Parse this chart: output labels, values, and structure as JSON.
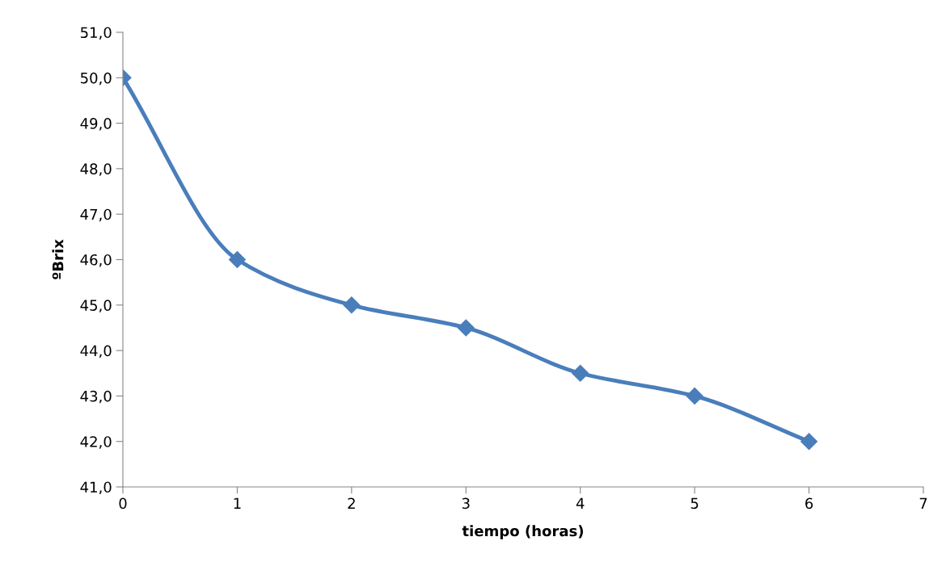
{
  "chart_data": {
    "type": "line",
    "xlabel": "tiempo (horas)",
    "ylabel": "ºBrix",
    "x": [
      0,
      1,
      2,
      3,
      4,
      5,
      6
    ],
    "series": [
      {
        "color": "#4a7ebb",
        "values": [
          50,
          46,
          45,
          44.5,
          43.5,
          43,
          42
        ]
      }
    ],
    "xlim": [
      0,
      7
    ],
    "xticks": [
      0,
      1,
      2,
      3,
      4,
      5,
      6,
      7
    ],
    "ylim": [
      41,
      51
    ],
    "yticks": [
      {
        "value": 41,
        "label": "41,0"
      },
      {
        "value": 42,
        "label": "42,0"
      },
      {
        "value": 43,
        "label": "43,0"
      },
      {
        "value": 44,
        "label": "44,0"
      },
      {
        "value": 45,
        "label": "45,0"
      },
      {
        "value": 46,
        "label": "46,0"
      },
      {
        "value": 47,
        "label": "47,0"
      },
      {
        "value": 48,
        "label": "48,0"
      },
      {
        "value": 49,
        "label": "49,0"
      },
      {
        "value": 50,
        "label": "50,0"
      },
      {
        "value": 51,
        "label": "51,0"
      }
    ],
    "grid": false,
    "marker": "diamond",
    "line_style": "solid"
  }
}
